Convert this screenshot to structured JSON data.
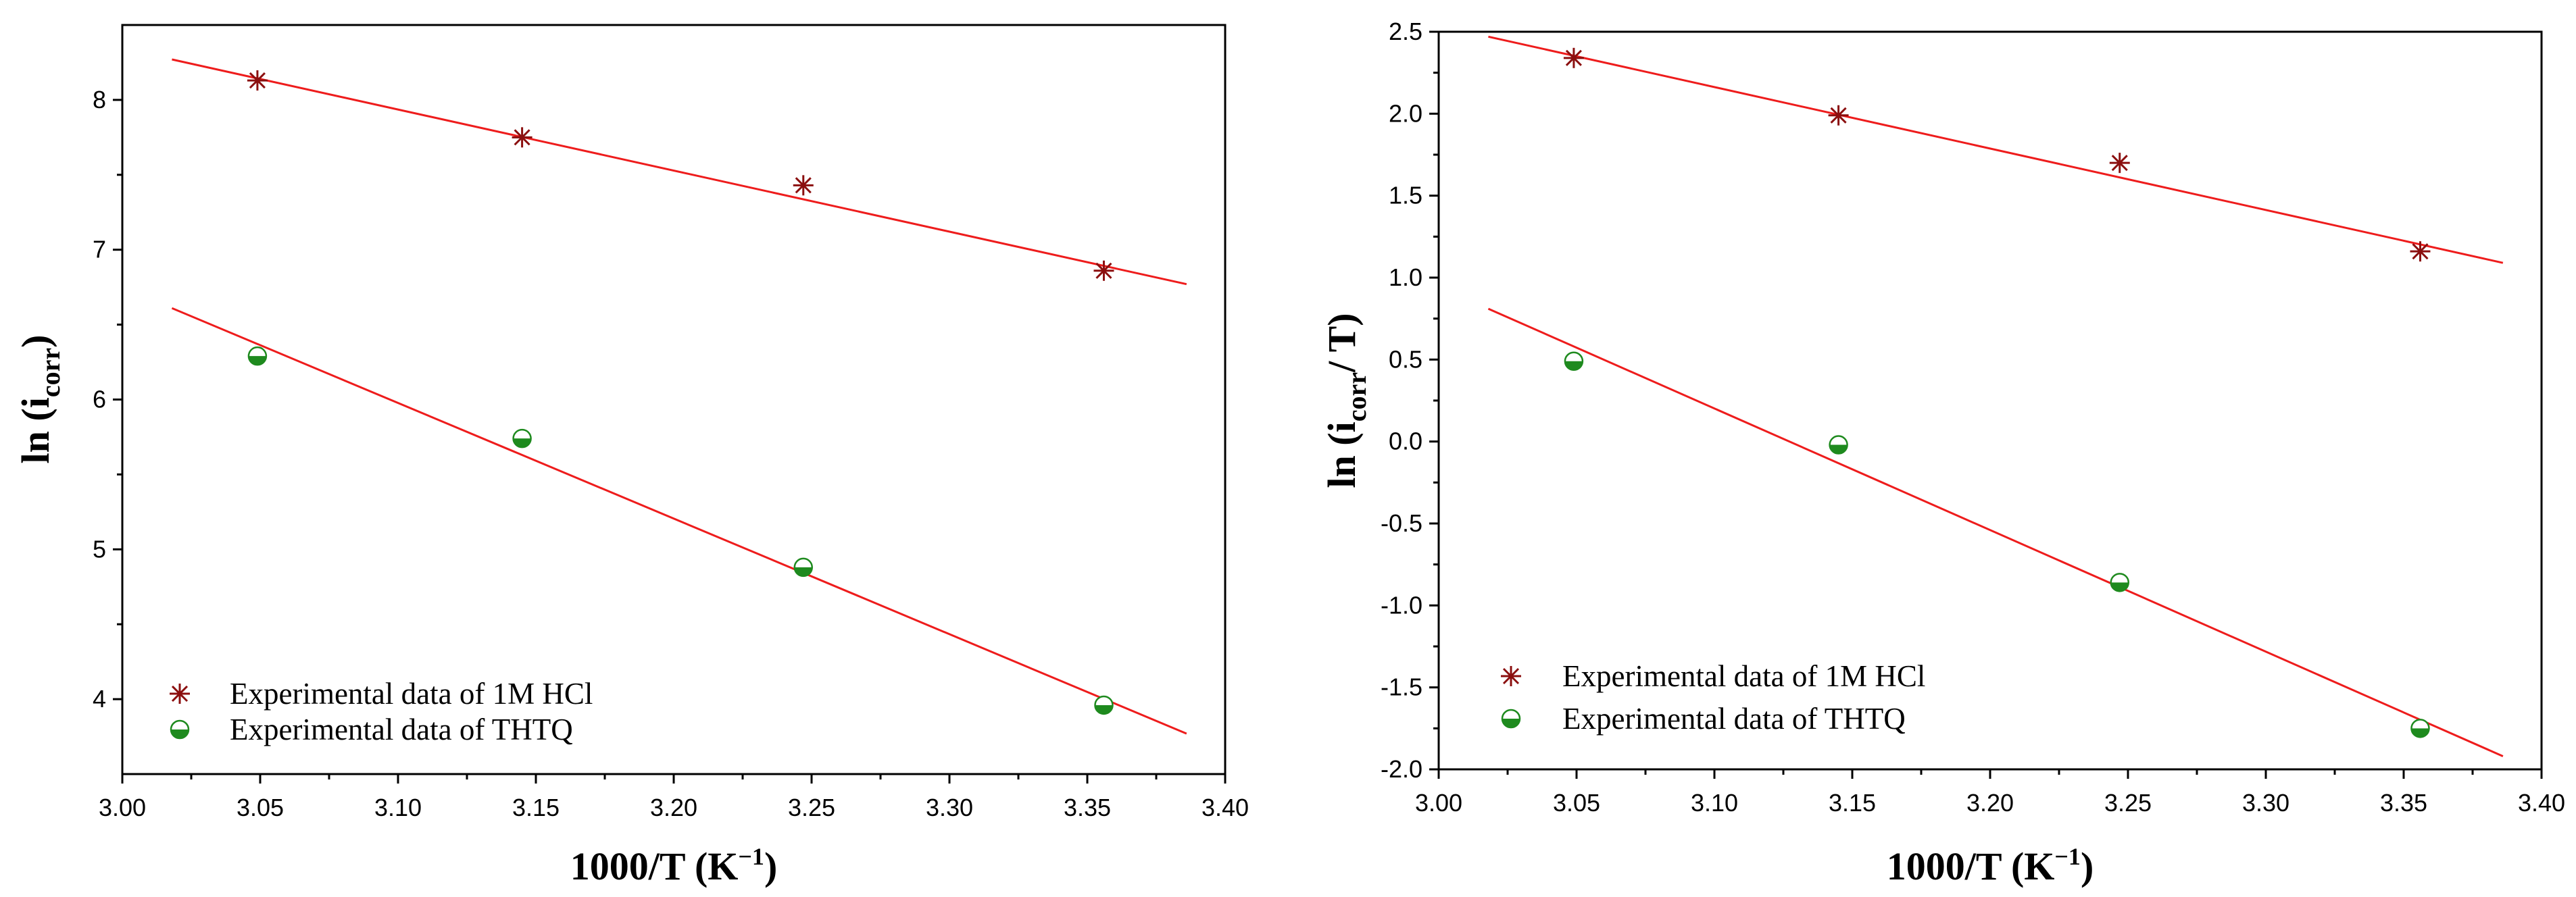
{
  "colors": {
    "fit_line": "#ee1c1c",
    "hcl_marker": "#8b0f0f",
    "thtq_fill": "#1e8a1e",
    "thtq_light": "#ffffff"
  },
  "chart_data": [
    {
      "type": "scatter",
      "xlabel": "1000/T (K",
      "xlabel_exponent": "−1",
      "xlabel_close": ")",
      "ylabel_prefix": "ln (i",
      "ylabel_sub": "corr",
      "ylabel_suffix": ")",
      "xlim": [
        3.0,
        3.4
      ],
      "ylim": [
        3.5,
        8.5
      ],
      "xticks": [
        3.0,
        3.05,
        3.1,
        3.15,
        3.2,
        3.25,
        3.3,
        3.35,
        3.4
      ],
      "xtick_labels": [
        "3.00",
        "3.05",
        "3.10",
        "3.15",
        "3.20",
        "3.25",
        "3.30",
        "3.35",
        "3.40"
      ],
      "yticks": [
        4,
        5,
        6,
        7,
        8
      ],
      "ytick_labels": [
        "4",
        "5",
        "6",
        "7",
        "8"
      ],
      "legend_position": "bottom-left",
      "series": [
        {
          "name": "Experimental data of 1M HCl",
          "marker": "asterisk",
          "x": [
            3.049,
            3.145,
            3.247,
            3.356
          ],
          "y": [
            8.13,
            7.75,
            7.43,
            6.86
          ],
          "fit": {
            "x": [
              3.018,
              3.386
            ],
            "y": [
              8.27,
              6.77
            ]
          }
        },
        {
          "name": "Experimental data of THTQ",
          "marker": "half-circle",
          "x": [
            3.049,
            3.145,
            3.247,
            3.356
          ],
          "y": [
            6.29,
            5.74,
            4.88,
            3.96
          ],
          "fit": {
            "x": [
              3.018,
              3.386
            ],
            "y": [
              6.61,
              3.77
            ]
          }
        }
      ]
    },
    {
      "type": "scatter",
      "xlabel": "1000/T (K",
      "xlabel_exponent": "−1",
      "xlabel_close": ")",
      "ylabel_prefix": "ln (i",
      "ylabel_sub": "corr",
      "ylabel_suffix": "/ T)",
      "xlim": [
        3.0,
        3.4
      ],
      "ylim": [
        -2.0,
        2.5
      ],
      "xticks": [
        3.0,
        3.05,
        3.1,
        3.15,
        3.2,
        3.25,
        3.3,
        3.35,
        3.4
      ],
      "xtick_labels": [
        "3.00",
        "3.05",
        "3.10",
        "3.15",
        "3.20",
        "3.25",
        "3.30",
        "3.35",
        "3.40"
      ],
      "yticks": [
        -2.0,
        -1.5,
        -1.0,
        -0.5,
        0.0,
        0.5,
        1.0,
        1.5,
        2.0,
        2.5
      ],
      "ytick_labels": [
        "-2.0",
        "-1.5",
        "-1.0",
        "-0.5",
        "0.0",
        "0.5",
        "1.0",
        "1.5",
        "2.0",
        "2.5"
      ],
      "legend_position": "bottom-left",
      "series": [
        {
          "name": "Experimental data of 1M HCl",
          "marker": "asterisk",
          "x": [
            3.049,
            3.145,
            3.247,
            3.356
          ],
          "y": [
            2.34,
            1.99,
            1.7,
            1.16
          ],
          "fit": {
            "x": [
              3.018,
              3.386
            ],
            "y": [
              2.47,
              1.09
            ]
          }
        },
        {
          "name": "Experimental data of THTQ",
          "marker": "half-circle",
          "x": [
            3.049,
            3.145,
            3.247,
            3.356
          ],
          "y": [
            0.49,
            -0.02,
            -0.86,
            -1.75
          ],
          "fit": {
            "x": [
              3.018,
              3.386
            ],
            "y": [
              0.81,
              -1.92
            ]
          }
        }
      ]
    }
  ]
}
